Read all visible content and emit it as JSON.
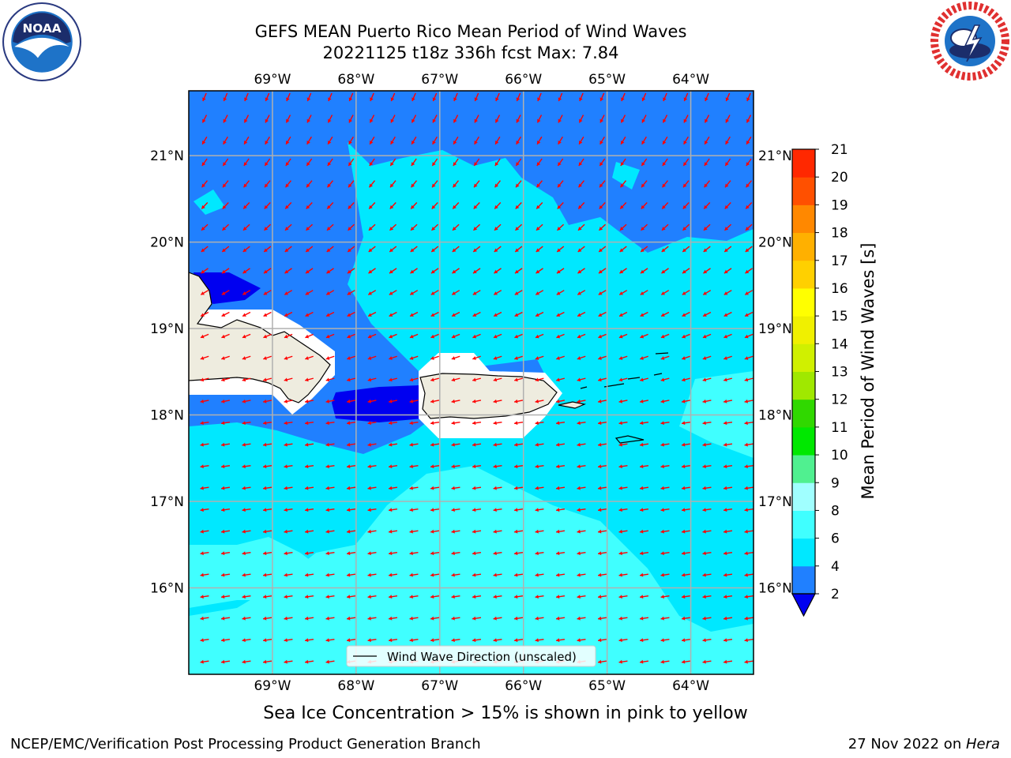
{
  "header": {
    "title_line1": "GEFS MEAN Puerto Rico Mean Period of Wind Waves",
    "title_line2": "20221125 t18z 336h fcst   Max: 7.84"
  },
  "logos": {
    "left": {
      "icon": "noaa-logo-icon",
      "text": "NOAA"
    },
    "right": {
      "icon": "national-weather-service-logo-icon"
    }
  },
  "map": {
    "lon_labels": [
      "69°W",
      "68°W",
      "67°W",
      "66°W",
      "65°W",
      "64°W"
    ],
    "lat_labels": [
      "21°N",
      "20°N",
      "19°N",
      "18°N",
      "17°N",
      "16°N"
    ],
    "lon_range": [
      -70.0,
      -63.25
    ],
    "lat_range": [
      15.0,
      21.75
    ],
    "gridlines": true,
    "legend": {
      "label": "Wind Wave Direction (unscaled)",
      "placement": "bottom-center"
    },
    "vector_color": "#ff0000",
    "land_color": "#eeecdf"
  },
  "colorbar": {
    "label": "Mean Period of Wind Waves [s]",
    "ticks": [
      "2",
      "4",
      "6",
      "8",
      "9",
      "10",
      "11",
      "12",
      "13",
      "14",
      "15",
      "16",
      "17",
      "18",
      "19",
      "20",
      "21"
    ],
    "colors": [
      "#2080ff",
      "#00e8ff",
      "#40ffff",
      "#a0ffff",
      "#50f090",
      "#00e800",
      "#30d800",
      "#a0e800",
      "#d0f000",
      "#f0f000",
      "#ffff00",
      "#ffd000",
      "#ffb000",
      "#ff8800",
      "#ff5000",
      "#ff2800",
      "#ff0000"
    ],
    "under_color": "#0000f0"
  },
  "footer": {
    "sea_ice_note": "Sea Ice Concentration > 15% is shown in pink to yellow",
    "left": "NCEP/EMC/Verification Post Processing Product Generation Branch",
    "right_prefix": "27 Nov 2022 on ",
    "right_italic": "Hera"
  }
}
